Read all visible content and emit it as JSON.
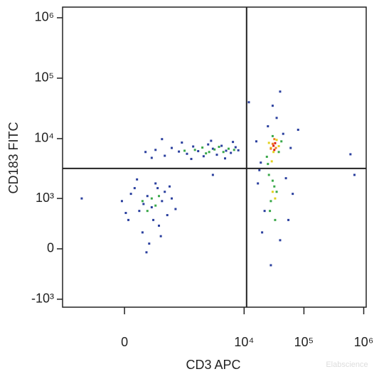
{
  "chart_data": {
    "type": "scatter",
    "xlabel": "CD3 APC",
    "ylabel": "CD183 FITC",
    "watermark": "Elabscience",
    "xscale": "asinh",
    "xcofactor": 200,
    "yscale": "asinh",
    "ycofactor": 300,
    "xlim": [
      -1076,
      1100000
    ],
    "ylim": [
      -1370,
      1500000
    ],
    "xticks": [
      0,
      {
        "value": 10000,
        "label": "10⁴"
      },
      {
        "value": 100000,
        "label": "10⁵"
      },
      {
        "value": 1000000,
        "label": "10⁶"
      }
    ],
    "yticks": [
      {
        "value": -1000,
        "label": "-10³"
      },
      0,
      {
        "value": 1000,
        "label": "10³"
      },
      {
        "value": 10000,
        "label": "10⁴"
      },
      {
        "value": 100000,
        "label": "10⁵"
      },
      {
        "value": 1000000,
        "label": "10⁶"
      }
    ],
    "gates": {
      "x": 11000,
      "y": 3200
    },
    "series": [
      {
        "color": "#2a3f9e",
        "x": [
          300,
          450,
          600,
          800,
          1100,
          1400,
          1700,
          2100,
          2500,
          3000,
          3500,
          4200,
          5000,
          6000,
          7200,
          8000,
          180,
          250,
          900,
          1300,
          2800,
          4800,
          6500,
          400,
          -20,
          30,
          80,
          120,
          150,
          200,
          250,
          300,
          350,
          400,
          450,
          500,
          600,
          700,
          100,
          220,
          50,
          330,
          160,
          270,
          380,
          550,
          10,
          190,
          16000,
          19000,
          45000,
          60000,
          17000,
          22000,
          50000,
          55000,
          20000,
          40000,
          25000,
          35000,
          18000,
          65000,
          28000,
          40000,
          30000,
          600000,
          700000,
          12000,
          80000,
          3000,
          -500
        ],
        "y": [
          6500,
          5200,
          7000,
          6100,
          5600,
          7400,
          6200,
          5100,
          8000,
          6800,
          5400,
          7600,
          6300,
          5800,
          7200,
          6400,
          6000,
          4800,
          8600,
          4600,
          9200,
          4700,
          8800,
          9800,
          900,
          400,
          1500,
          600,
          200,
          1100,
          700,
          1800,
          300,
          900,
          1300,
          500,
          1000,
          650,
          2100,
          60,
          1200,
          1500,
          800,
          400,
          150,
          1600,
          550,
          -40,
          9000,
          4000,
          12000,
          7000,
          1800,
          600,
          2200,
          400,
          200,
          100,
          16000,
          22000,
          3000,
          1200,
          -200,
          60000,
          35000,
          5500,
          2500,
          40000,
          14000,
          2500,
          1000
        ]
      },
      {
        "color": "#3aa84a",
        "x": [
          1500,
          2000,
          2600,
          3200,
          3800,
          4500,
          5500,
          1000,
          2300,
          6800,
          150,
          250,
          200,
          350,
          300,
          24000,
          30000,
          38000,
          26000,
          32000,
          28000,
          35000,
          30000,
          25000,
          42000,
          27000,
          33000
        ],
        "y": [
          6500,
          7100,
          6000,
          6600,
          7300,
          6000,
          6800,
          6300,
          5700,
          6500,
          900,
          1000,
          600,
          1100,
          750,
          5000,
          11000,
          6000,
          2500,
          1600,
          900,
          1300,
          2000,
          3800,
          9000,
          600,
          400
        ]
      },
      {
        "color": "#e2d21e",
        "x": [
          28000,
          35000,
          31000,
          26000,
          38000,
          30000,
          33000,
          29000
        ],
        "y": [
          7000,
          9500,
          6000,
          8500,
          7500,
          1300,
          1000,
          4200
        ]
      },
      {
        "color": "#f08220",
        "x": [
          30000,
          34000,
          32000,
          28000
        ],
        "y": [
          8200,
          7000,
          9800,
          6800
        ]
      },
      {
        "color": "#e02010",
        "x": [
          31000,
          33000,
          32000
        ],
        "y": [
          7600,
          8400,
          6500
        ]
      }
    ]
  }
}
